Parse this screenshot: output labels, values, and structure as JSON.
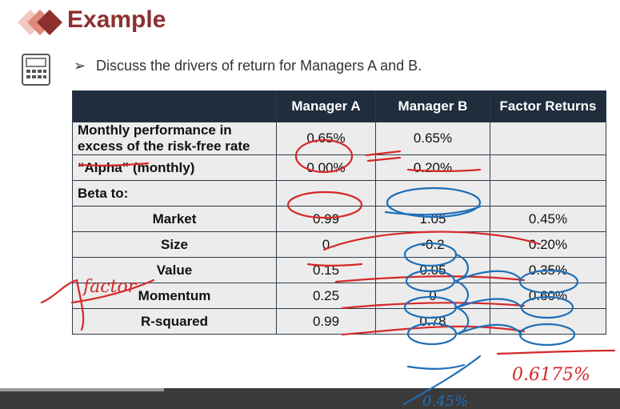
{
  "header": {
    "title": "Example"
  },
  "prompt": {
    "text": "Discuss the drivers of return for Managers A and B."
  },
  "table": {
    "columns": [
      "",
      "Manager A",
      "Manager B",
      "Factor Returns"
    ],
    "rows": [
      {
        "label": "Monthly performance in excess of the risk-free rate",
        "a": "0.65%",
        "b": "0.65%",
        "f": ""
      },
      {
        "label": "“Alpha” (monthly)",
        "a": "0.00%",
        "b": "0.20%",
        "f": ""
      },
      {
        "label": "Beta to:",
        "a": "",
        "b": "",
        "f": ""
      },
      {
        "label": "Market",
        "a": "0.99",
        "b": "1.05",
        "f": "0.45%"
      },
      {
        "label": "Size",
        "a": "0",
        "b": "-0.2",
        "f": "0.20%"
      },
      {
        "label": "Value",
        "a": "0.15",
        "b": "0.05",
        "f": "0.35%"
      },
      {
        "label": "Momentum",
        "a": "0.25",
        "b": "0",
        "f": "0.60%"
      },
      {
        "label": "R-squared",
        "a": "0.99",
        "b": "0.78",
        "f": ""
      }
    ]
  },
  "annotations": {
    "factor_note": "factor",
    "result_note": "0.6175%",
    "bottom_note": "0.45%",
    "ink_red": "#d62828",
    "ink_blue": "#1f6fb8"
  }
}
